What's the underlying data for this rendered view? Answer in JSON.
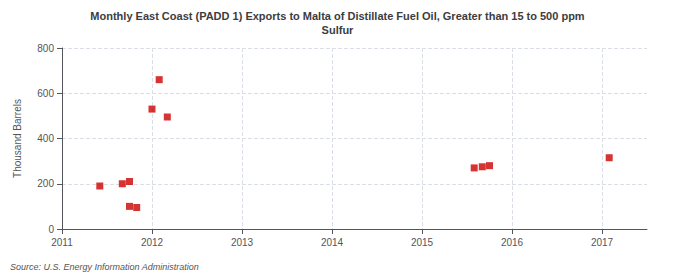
{
  "chart_data": {
    "type": "scatter",
    "title": "Monthly East Coast (PADD 1) Exports to Malta of Distillate Fuel Oil, Greater than 15 to 500 ppm\nSulfur",
    "ylabel": "Thousand Barrels",
    "source": "Source: U.S. Energy Information Administration",
    "x": [
      2011.42,
      2011.67,
      2011.75,
      2011.75,
      2011.83,
      2012.0,
      2012.08,
      2012.17,
      2015.58,
      2015.67,
      2015.75,
      2017.08
    ],
    "values": [
      190,
      200,
      210,
      100,
      95,
      530,
      660,
      495,
      270,
      275,
      280,
      315
    ],
    "color": "#cc0000",
    "marker": "square",
    "xlim": [
      2011.0,
      2017.5
    ],
    "ylim": [
      0,
      800
    ],
    "xticks": [
      2011,
      2012,
      2013,
      2014,
      2015,
      2016,
      2017
    ],
    "yticks": [
      0,
      200,
      400,
      600,
      800
    ],
    "grid": true
  }
}
